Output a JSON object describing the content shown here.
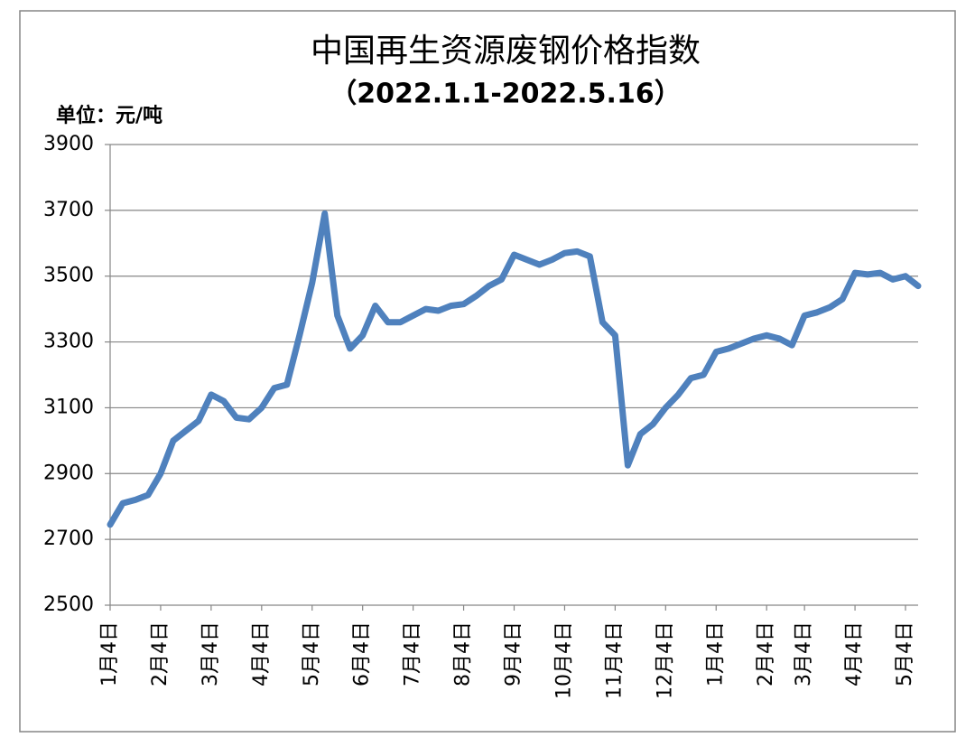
{
  "chart_data": {
    "type": "line",
    "title": "中国再生资源废钢价格指数",
    "subtitle": "（2022.1.1-2022.5.16）",
    "y_label": "单位：元/吨",
    "categories": [
      "1月4日",
      null,
      null,
      null,
      "2月4日",
      null,
      null,
      null,
      "3月4日",
      null,
      null,
      null,
      "4月4日",
      null,
      null,
      null,
      "5月4日",
      null,
      null,
      null,
      "6月4日",
      null,
      null,
      null,
      "7月4日",
      null,
      null,
      null,
      "8月4日",
      null,
      null,
      null,
      "9月4日",
      null,
      null,
      null,
      "10月4日",
      null,
      null,
      null,
      "11月4日",
      null,
      null,
      null,
      "12月4日",
      null,
      null,
      null,
      "1月4日",
      null,
      null,
      null,
      "2月4日",
      null,
      null,
      "3月4日",
      null,
      null,
      null,
      "4月4日",
      null,
      null,
      null,
      "5月4日",
      null
    ],
    "values": [
      2745,
      2810,
      2820,
      2835,
      2900,
      3000,
      3030,
      3060,
      3140,
      3120,
      3070,
      3065,
      3100,
      3160,
      3170,
      3320,
      3480,
      3690,
      3380,
      3280,
      3320,
      3410,
      3360,
      3360,
      3380,
      3400,
      3395,
      3410,
      3415,
      3440,
      3470,
      3490,
      3565,
      3550,
      3535,
      3550,
      3570,
      3575,
      3560,
      3360,
      3320,
      2925,
      3020,
      3050,
      3100,
      3140,
      3190,
      3200,
      3270,
      3280,
      3295,
      3310,
      3320,
      3310,
      3290,
      3380,
      3390,
      3405,
      3430,
      3510,
      3505,
      3510,
      3490,
      3500,
      3470
    ],
    "color": "#4f81bd",
    "ylim": [
      2500,
      3900
    ],
    "yticks": [
      2500,
      2700,
      2900,
      3100,
      3300,
      3500,
      3700,
      3900
    ],
    "grid": true
  }
}
